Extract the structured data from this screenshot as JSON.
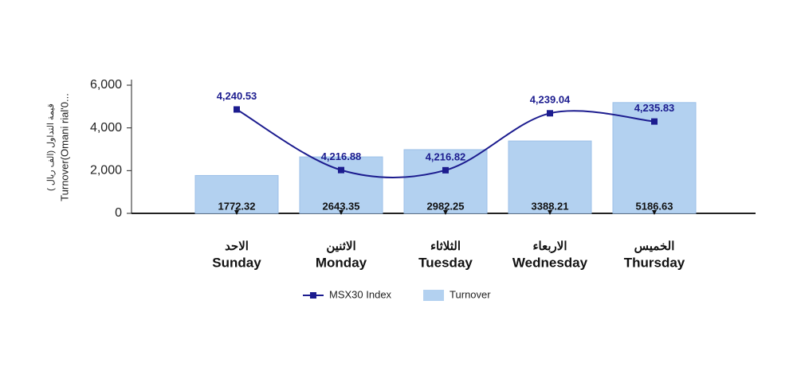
{
  "chart_data": {
    "type": "bar_line",
    "categories": [
      "Sunday",
      "Monday",
      "Tuesday",
      "Wednesday",
      "Thursday"
    ],
    "categories_arabic": [
      "الاحد",
      "الاثنين",
      "الثلاثاء",
      "الاربعاء",
      "الخميس"
    ],
    "y_label": "Turnover(Omani rial'0...",
    "y_label_arabic": "( قيمة التداول (الف ريال",
    "ylim": [
      0,
      6000
    ],
    "yticks": [
      0,
      {
        "value": 2000,
        "label": "2,000"
      },
      {
        "value": 4000,
        "label": "4,000"
      },
      {
        "value": 6000,
        "label": "6,000"
      }
    ],
    "y2lim": [
      4200,
      4250
    ],
    "series": [
      {
        "name": "MSX30 Index",
        "color": "#1c1c8f",
        "axis": "y2",
        "kind": "line",
        "values": [
          4240.53,
          4216.88,
          4216.82,
          4239.04,
          4235.83
        ],
        "value_labels": [
          "4,240.53",
          "4,216.88",
          "4,216.82",
          "4,239.04",
          "4,235.83"
        ]
      },
      {
        "name": "Turnover",
        "color": "#b3d1f0",
        "kind": "bar",
        "values": [
          1772.32,
          2643.35,
          2982.25,
          3388.21,
          5186.63
        ]
      }
    ]
  }
}
